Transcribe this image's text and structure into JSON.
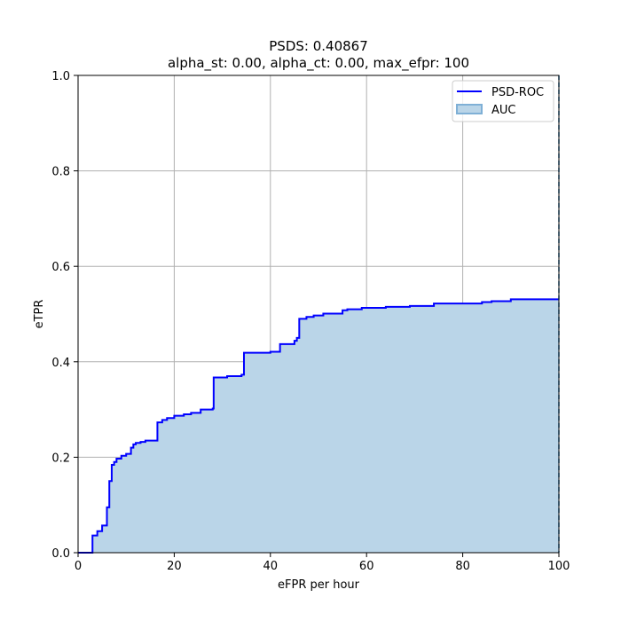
{
  "chart_data": {
    "type": "line",
    "title": "PSDS: 0.40867",
    "subtitle": "alpha_st: 0.00, alpha_ct: 0.00, max_efpr: 100",
    "xlabel": "eFPR per hour",
    "ylabel": "eTPR",
    "xlim": [
      0,
      100
    ],
    "ylim": [
      0,
      1.0
    ],
    "x_ticks": [
      "0",
      "20",
      "40",
      "60",
      "80",
      "100"
    ],
    "y_ticks": [
      "0.0",
      "0.2",
      "0.4",
      "0.6",
      "0.8",
      "1.0"
    ],
    "grid": true,
    "legend_position": "top-right",
    "legend": [
      "PSD-ROC",
      "AUC"
    ],
    "colors": {
      "line": "#0000ff",
      "fill": "#bad5e8",
      "fill_edge": "#7fb0d6",
      "vline": "#1f77b4"
    },
    "series": [
      {
        "name": "PSD-ROC",
        "step": "post",
        "x": [
          0,
          3,
          4,
          5,
          6,
          6.5,
          7,
          7.5,
          8,
          9,
          10,
          11,
          11.5,
          12,
          13,
          14,
          16.5,
          17.5,
          18.5,
          20,
          22,
          23.5,
          25.5,
          28,
          28.2,
          31,
          34,
          34.5,
          40,
          42,
          45,
          45.5,
          46,
          47.5,
          49,
          51,
          55,
          56,
          59,
          64,
          69,
          74,
          84,
          86,
          90,
          100
        ],
        "y": [
          0,
          0.036,
          0.045,
          0.057,
          0.095,
          0.15,
          0.184,
          0.19,
          0.197,
          0.203,
          0.207,
          0.22,
          0.227,
          0.23,
          0.232,
          0.235,
          0.273,
          0.278,
          0.282,
          0.287,
          0.29,
          0.293,
          0.3,
          0.302,
          0.367,
          0.37,
          0.373,
          0.419,
          0.421,
          0.437,
          0.444,
          0.45,
          0.49,
          0.494,
          0.497,
          0.501,
          0.508,
          0.51,
          0.513,
          0.515,
          0.517,
          0.522,
          0.525,
          0.527,
          0.531,
          0.531
        ]
      }
    ]
  }
}
